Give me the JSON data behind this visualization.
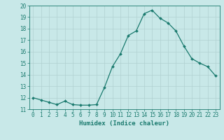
{
  "x": [
    0,
    1,
    2,
    3,
    4,
    5,
    6,
    7,
    8,
    9,
    10,
    11,
    12,
    13,
    14,
    15,
    16,
    17,
    18,
    19,
    20,
    21,
    22,
    23
  ],
  "y": [
    12.0,
    11.8,
    11.6,
    11.4,
    11.7,
    11.4,
    11.35,
    11.35,
    11.4,
    12.9,
    14.7,
    15.8,
    17.4,
    17.8,
    19.3,
    19.6,
    18.9,
    18.5,
    17.8,
    16.5,
    15.4,
    15.0,
    14.7,
    13.9
  ],
  "line_color": "#1a7a6e",
  "marker": "D",
  "marker_size": 2.0,
  "bg_color": "#c8e8e8",
  "grid_color": "#b0d0d0",
  "xlabel": "Humidex (Indice chaleur)",
  "ylim": [
    11,
    20
  ],
  "xlim_min": -0.5,
  "xlim_max": 23.5,
  "yticks": [
    11,
    12,
    13,
    14,
    15,
    16,
    17,
    18,
    19,
    20
  ],
  "xticks": [
    0,
    1,
    2,
    3,
    4,
    5,
    6,
    7,
    8,
    9,
    10,
    11,
    12,
    13,
    14,
    15,
    16,
    17,
    18,
    19,
    20,
    21,
    22,
    23
  ],
  "tick_color": "#1a7a6e",
  "label_fontsize": 6.5,
  "tick_fontsize": 5.5,
  "linewidth": 0.9
}
